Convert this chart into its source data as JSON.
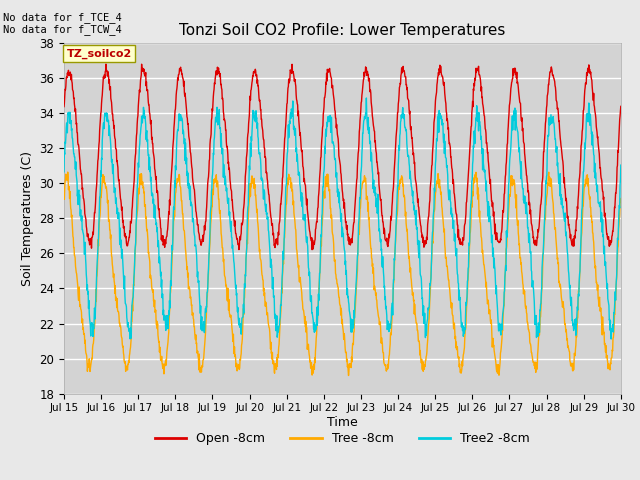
{
  "title": "Tonzi Soil CO2 Profile: Lower Temperatures",
  "xlabel": "Time",
  "ylabel": "Soil Temperatures (C)",
  "top_left_text": "No data for f_TCE_4\nNo data for f_TCW_4",
  "legend_box_text": "TZ_soilco2",
  "ylim": [
    18,
    38
  ],
  "yticks": [
    18,
    20,
    22,
    24,
    26,
    28,
    30,
    32,
    34,
    36,
    38
  ],
  "xtick_labels": [
    "Jul 15",
    "Jul 16",
    "Jul 17",
    "Jul 18",
    "Jul 19",
    "Jul 20",
    "Jul 21",
    "Jul 22",
    "Jul 23",
    "Jul 24",
    "Jul 25",
    "Jul 26",
    "Jul 27",
    "Jul 28",
    "Jul 29",
    "Jul 30"
  ],
  "bg_color": "#e8e8e8",
  "plot_bg_color": "#d3d3d3",
  "grid_color": "#ffffff",
  "line_colors": {
    "open": "#dd0000",
    "tree": "#ffaa00",
    "tree2": "#00ccdd"
  },
  "legend_labels": [
    "Open -8cm",
    "Tree -8cm",
    "Tree2 -8cm"
  ]
}
